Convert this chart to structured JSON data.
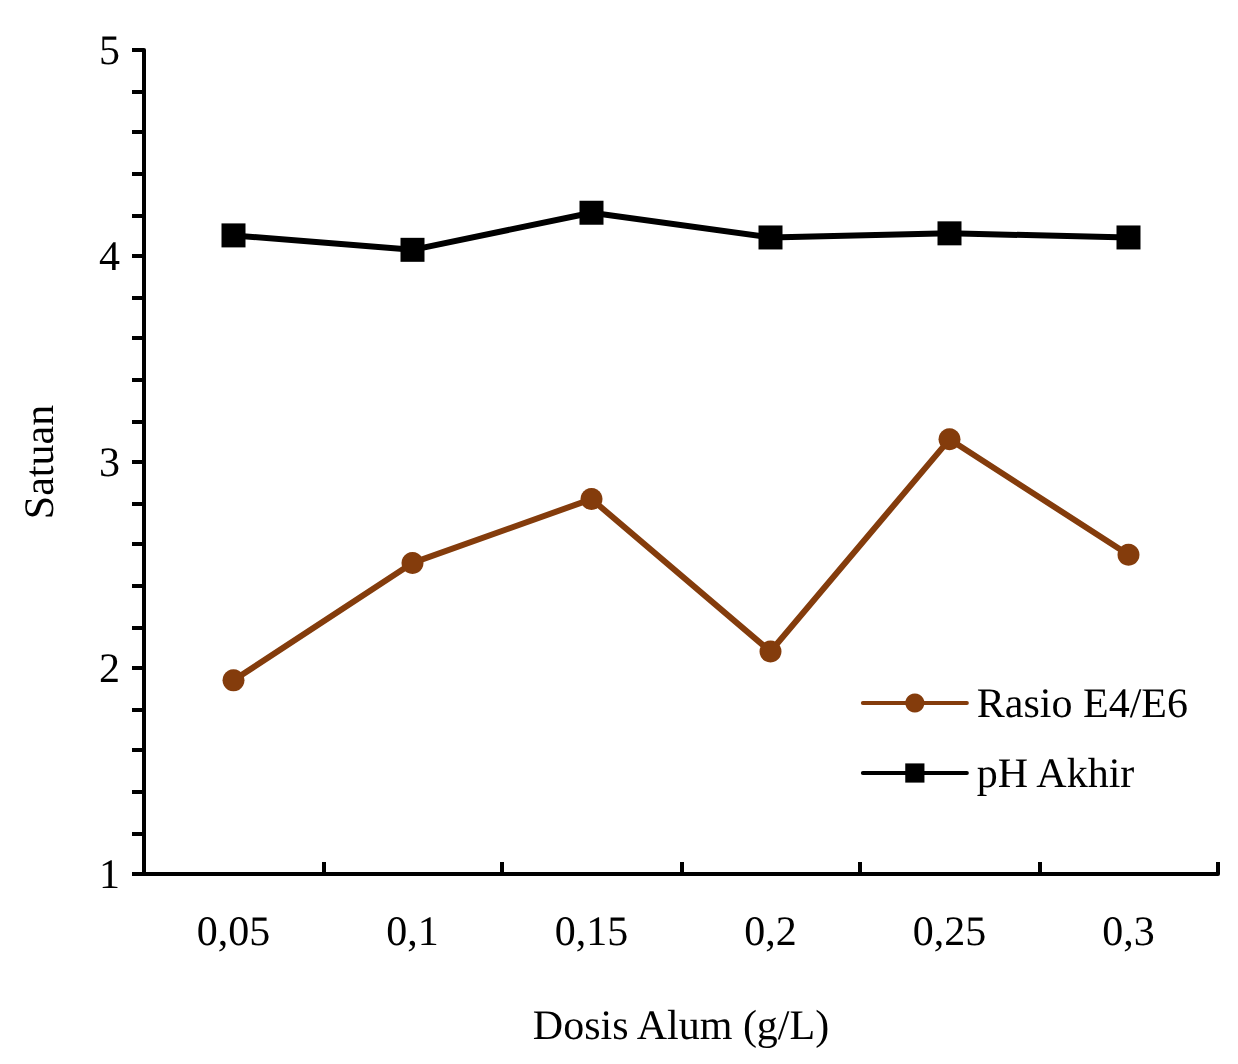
{
  "chart_data": {
    "type": "line",
    "xlabel": "Dosis Alum (g/L)",
    "ylabel": "Satuan",
    "categories": [
      "0,05",
      "0,1",
      "0,15",
      "0,2",
      "0,25",
      "0,3"
    ],
    "series": [
      {
        "name": "Rasio E4/E6",
        "color": "#843c0c",
        "marker": "circle",
        "values": [
          1.94,
          2.51,
          2.82,
          2.08,
          3.11,
          2.55
        ]
      },
      {
        "name": "pH Akhir",
        "color": "#000000",
        "marker": "square",
        "values": [
          4.1,
          4.03,
          4.21,
          4.09,
          4.11,
          4.09
        ]
      }
    ],
    "ylim": [
      1,
      5
    ],
    "yticks": [
      1,
      {
        "value": 1.2,
        "label": null
      },
      {
        "value": 1.4,
        "label": null
      },
      {
        "value": 1.6,
        "label": null
      },
      {
        "value": 1.8,
        "label": null
      },
      2,
      {
        "value": 2.2,
        "label": null
      },
      {
        "value": 2.4,
        "label": null
      },
      {
        "value": 2.6,
        "label": null
      },
      {
        "value": 2.8,
        "label": null
      },
      3,
      {
        "value": 3.2,
        "label": null
      },
      {
        "value": 3.4,
        "label": null
      },
      {
        "value": 3.6,
        "label": null
      },
      {
        "value": 3.8,
        "label": null
      },
      4,
      {
        "value": 4.2,
        "label": null
      },
      {
        "value": 4.4,
        "label": null
      },
      {
        "value": 4.6,
        "label": null
      },
      {
        "value": 4.8,
        "label": null
      },
      5
    ],
    "grid": false,
    "legend": "bottom right",
    "line_style": "solid"
  }
}
